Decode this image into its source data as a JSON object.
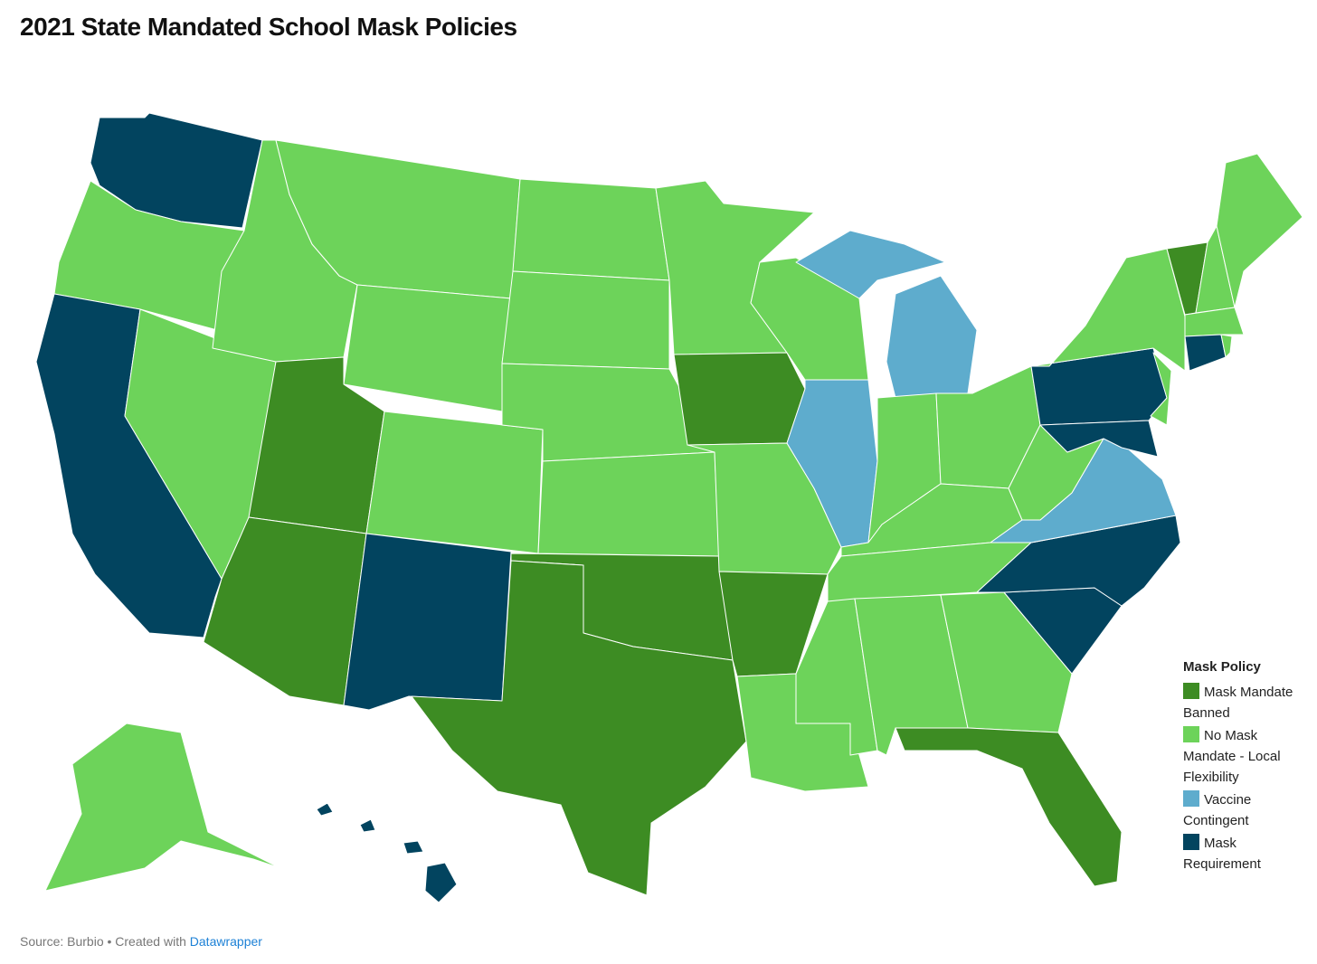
{
  "header": {
    "title": "2021 State Mandated School Mask Policies"
  },
  "legend": {
    "title": "Mask Policy",
    "items": [
      {
        "label": "Mask Mandate Banned",
        "color": "#3d8c23"
      },
      {
        "label": "No Mask Mandate - Local Flexibility",
        "color": "#6dd35a"
      },
      {
        "label": "Vaccine Contingent",
        "color": "#5eaccd"
      },
      {
        "label": "Mask Requirement",
        "color": "#02445f"
      }
    ]
  },
  "map": {
    "regions": [
      3,
      1,
      3,
      1,
      1,
      1,
      1,
      0,
      0,
      1,
      3,
      1,
      1,
      1,
      1,
      0,
      0,
      1,
      0,
      1,
      0,
      1,
      1,
      2,
      2,
      1,
      1,
      1,
      1,
      1,
      1,
      1,
      0,
      3,
      3,
      2,
      1,
      3,
      1,
      1,
      3,
      0,
      1,
      1,
      1,
      3,
      1,
      1,
      3
    ]
  },
  "footer": {
    "source": "Source: Burbio • Created with",
    "link": "Datawrapper"
  }
}
